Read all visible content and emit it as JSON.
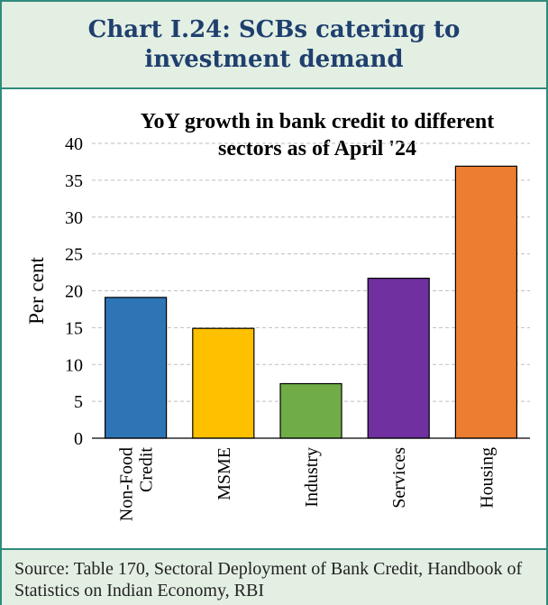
{
  "header": {
    "title": "Chart I.24: SCBs catering to investment demand"
  },
  "chart_data": {
    "type": "bar",
    "title": "YoY growth in bank credit to different sectors as of April '24",
    "ylabel": "Per cent",
    "xlabel": "",
    "ylim": [
      0,
      40
    ],
    "yticks": [
      0,
      5,
      10,
      15,
      20,
      25,
      30,
      35,
      40
    ],
    "categories": [
      "Non-Food Credit",
      "MSME",
      "Industry",
      "Services",
      "Housing"
    ],
    "category_lines": [
      [
        "Non-Food",
        "Credit"
      ],
      [
        "MSME"
      ],
      [
        "Industry"
      ],
      [
        "Services"
      ],
      [
        "Housing"
      ]
    ],
    "values": [
      19.1,
      14.9,
      7.4,
      21.7,
      36.9
    ],
    "colors": [
      "#2E75B6",
      "#FFC000",
      "#70AD47",
      "#7030A0",
      "#ED7D31"
    ],
    "grid": true,
    "legend": "none"
  },
  "source": {
    "text": "Source: Table 170, Sectoral Deployment of Bank Credit, Handbook of Statistics on Indian Economy, RBI"
  }
}
